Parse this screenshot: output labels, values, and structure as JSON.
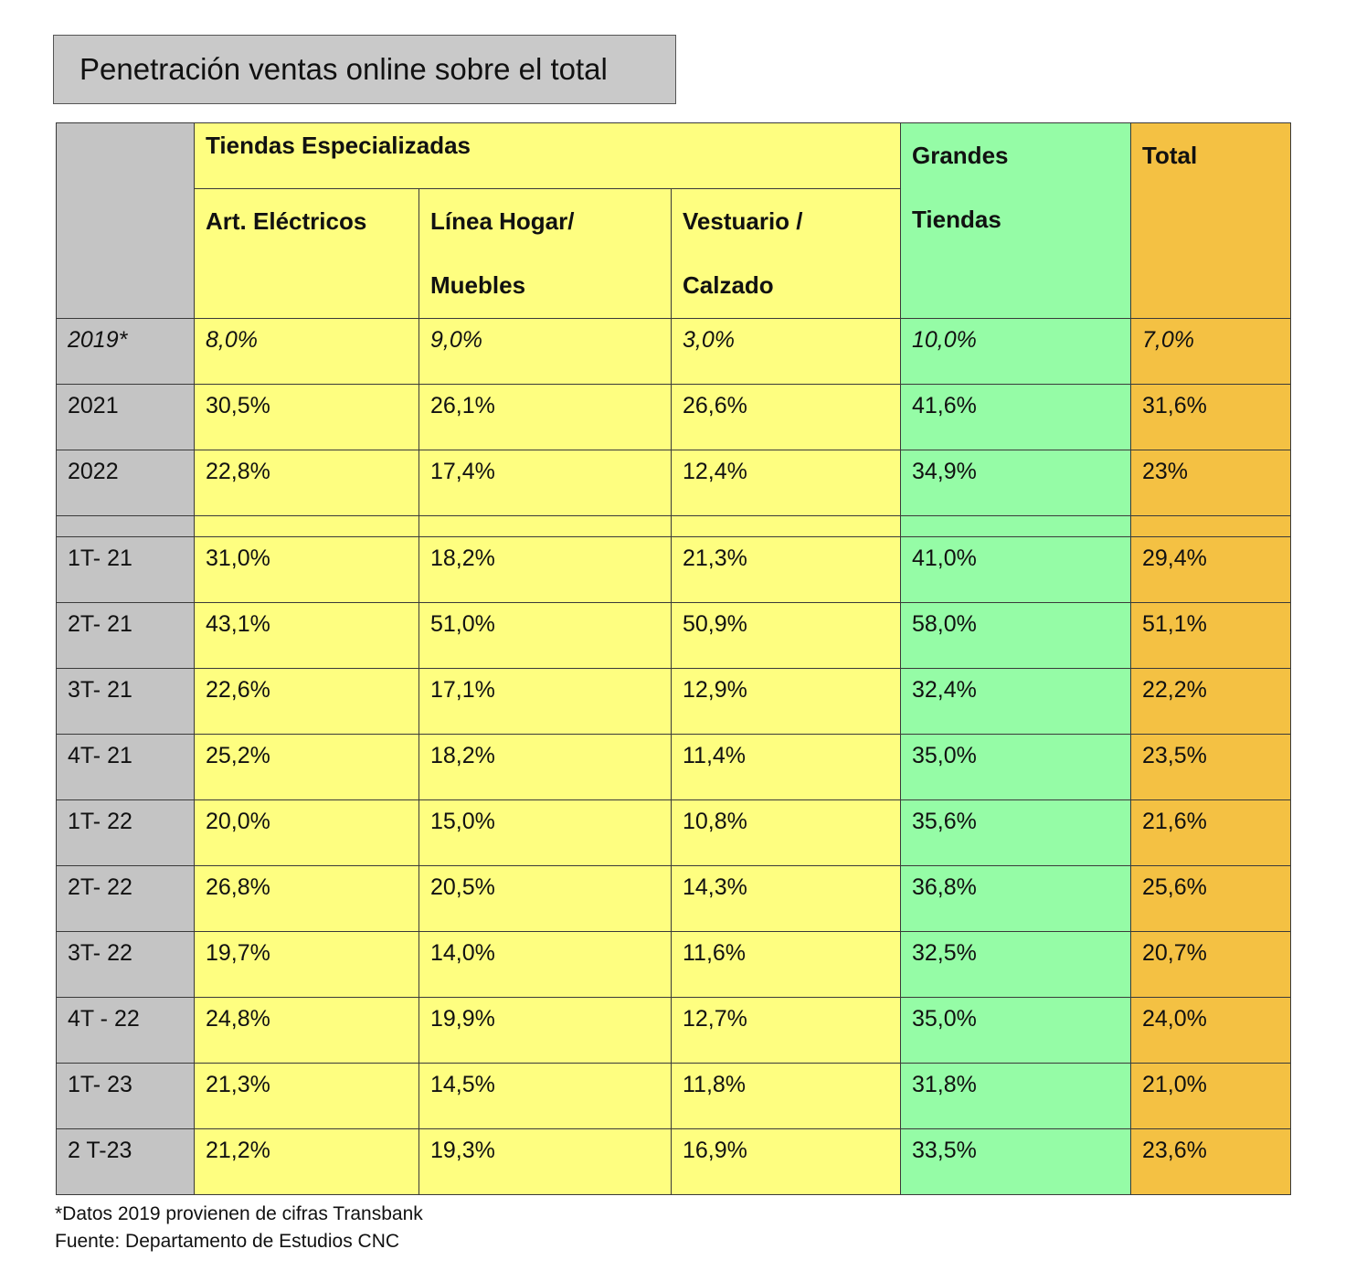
{
  "title": "Penetración ventas online sobre el total",
  "header": {
    "group": "Tiendas Especializadas",
    "col1": "Art. Eléctricos",
    "col2": [
      "Línea Hogar/",
      "Muebles"
    ],
    "col3": [
      "Vestuario /",
      " Calzado"
    ],
    "col4": [
      "Grandes",
      "Tiendas"
    ],
    "col5": "Total"
  },
  "colors": {
    "label": "#c4c4c4",
    "especializadas": "#fefe80",
    "grandes": "#95fca6",
    "total": "#f4c143"
  },
  "chart_data": {
    "type": "table",
    "title": "Penetración ventas online sobre el total",
    "columns": [
      "Art. Eléctricos",
      "Línea Hogar/ Muebles",
      "Vestuario / Calzado",
      "Grandes Tiendas",
      "Total"
    ],
    "rows": [
      {
        "label": "2019*",
        "values": [
          "8,0%",
          "9,0%",
          "3,0%",
          "10,0%",
          "7,0%"
        ],
        "italic": true
      },
      {
        "label": "2021",
        "values": [
          "30,5%",
          "26,1%",
          "26,6%",
          "41,6%",
          "31,6%"
        ]
      },
      {
        "label": "2022",
        "values": [
          "22,8%",
          "17,4%",
          "12,4%",
          "34,9%",
          "23%"
        ]
      },
      {
        "label": "",
        "values": [
          "",
          "",
          "",
          "",
          ""
        ],
        "spacer": true
      },
      {
        "label": "1T- 21",
        "values": [
          "31,0%",
          "18,2%",
          "21,3%",
          "41,0%",
          "29,4%"
        ]
      },
      {
        "label": "2T- 21",
        "values": [
          "43,1%",
          "51,0%",
          "50,9%",
          "58,0%",
          "51,1%"
        ]
      },
      {
        "label": "3T- 21",
        "values": [
          "22,6%",
          "17,1%",
          "12,9%",
          "32,4%",
          "22,2%"
        ]
      },
      {
        "label": "4T- 21",
        "values": [
          "25,2%",
          "18,2%",
          "11,4%",
          "35,0%",
          "23,5%"
        ]
      },
      {
        "label": "1T- 22",
        "values": [
          "20,0%",
          "15,0%",
          "10,8%",
          "35,6%",
          "21,6%"
        ]
      },
      {
        "label": "2T- 22",
        "values": [
          "26,8%",
          "20,5%",
          "14,3%",
          "36,8%",
          "25,6%"
        ]
      },
      {
        "label": "3T- 22",
        "values": [
          "19,7%",
          "14,0%",
          "11,6%",
          "32,5%",
          "20,7%"
        ]
      },
      {
        "label": "4T - 22",
        "values": [
          "24,8%",
          "19,9%",
          "12,7%",
          "35,0%",
          "24,0%"
        ]
      },
      {
        "label": "1T- 23",
        "values": [
          "21,3%",
          "14,5%",
          "11,8%",
          "31,8%",
          "21,0%"
        ]
      },
      {
        "label": "2 T-23",
        "values": [
          "21,2%",
          "19,3%",
          "16,9%",
          "33,5%",
          "23,6%"
        ]
      }
    ]
  },
  "notes": {
    "footnote": "*Datos 2019 provienen de cifras Transbank",
    "source": "Fuente: Departamento de Estudios CNC"
  }
}
